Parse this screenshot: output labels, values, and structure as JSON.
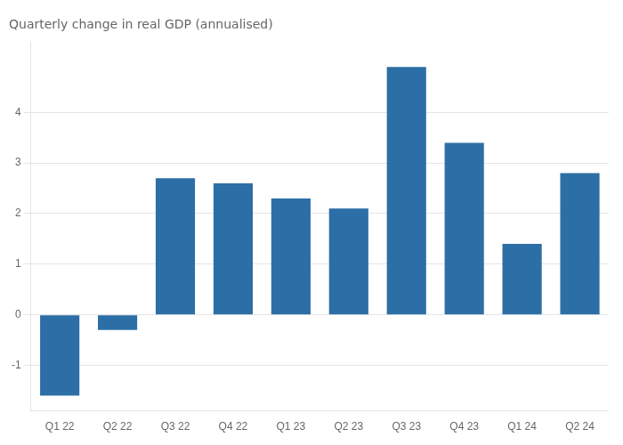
{
  "chart_data": {
    "type": "bar",
    "title": "Quarterly change in real GDP (annualised)",
    "categories": [
      "Q1 22",
      "Q2 22",
      "Q3 22",
      "Q4 22",
      "Q1 23",
      "Q2 23",
      "Q3 23",
      "Q4 23",
      "Q1 24",
      "Q2 24"
    ],
    "values": [
      -1.6,
      -0.3,
      2.7,
      2.6,
      2.3,
      2.1,
      4.9,
      3.4,
      1.4,
      2.8
    ],
    "color": "#2c6fa6",
    "ylim": [
      -1.9,
      5.4
    ],
    "yticks": [
      -1,
      0,
      1,
      2,
      3,
      4
    ],
    "grid": true
  }
}
